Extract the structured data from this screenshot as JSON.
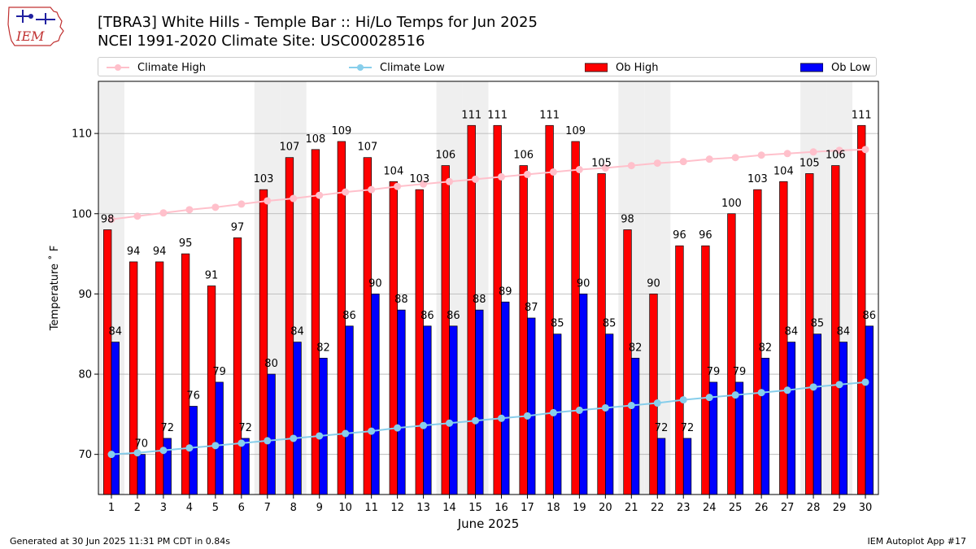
{
  "header": {
    "title_line1": "[TBRA3] White Hills - Temple Bar :: Hi/Lo Temps for Jun 2025",
    "title_line2": "NCEI 1991-2020 Climate Site: USC00028516",
    "logo_text": "IEM"
  },
  "legend": [
    {
      "label": "Climate High",
      "kind": "line",
      "color": "#ffc0cb"
    },
    {
      "label": "Climate Low",
      "kind": "line",
      "color": "#87ceeb"
    },
    {
      "label": "Ob High",
      "kind": "bar",
      "color": "#ff0000"
    },
    {
      "label": "Ob Low",
      "kind": "bar",
      "color": "#0000ff"
    }
  ],
  "footer": {
    "left": "Generated at 30 Jun 2025 11:31 PM CDT in 0.84s",
    "right": "IEM Autoplot App #17"
  },
  "colors": {
    "ob_high": "#ff0000",
    "ob_low": "#0000ff",
    "climate_high": "#ffc0cb",
    "climate_low": "#87ceeb",
    "weekend_shade": "#efefef",
    "grid": "#b0b0b0"
  },
  "chart_data": {
    "type": "bar",
    "title": "[TBRA3] White Hills - Temple Bar :: Hi/Lo Temps for Jun 2025",
    "subtitle": "NCEI 1991-2020 Climate Site: USC00028516",
    "xlabel": "June 2025",
    "ylabel": "Temperature ˚ F",
    "ylim": [
      65,
      116.5
    ],
    "yticks": [
      70,
      80,
      90,
      100,
      110
    ],
    "grid": true,
    "legend_position": "top",
    "categories": [
      "1",
      "2",
      "3",
      "4",
      "5",
      "6",
      "7",
      "8",
      "9",
      "10",
      "11",
      "12",
      "13",
      "14",
      "15",
      "16",
      "17",
      "18",
      "19",
      "20",
      "21",
      "22",
      "23",
      "24",
      "25",
      "26",
      "27",
      "28",
      "29",
      "30"
    ],
    "shaded_days": [
      1,
      7,
      8,
      14,
      15,
      21,
      22,
      28,
      29
    ],
    "series": [
      {
        "name": "Ob High",
        "kind": "bar",
        "values": [
          98,
          94,
          94,
          95,
          91,
          97,
          103,
          107,
          108,
          109,
          107,
          104,
          103,
          106,
          111,
          111,
          106,
          111,
          109,
          105,
          98,
          90,
          96,
          96,
          100,
          103,
          104,
          105,
          106,
          111
        ],
        "labels": [
          98,
          94,
          94,
          95,
          91,
          97,
          103,
          107,
          108,
          109,
          107,
          104,
          103,
          106,
          111,
          111,
          106,
          111,
          109,
          105,
          98,
          90,
          96,
          96,
          100,
          103,
          104,
          105,
          106,
          111
        ]
      },
      {
        "name": "Ob Low",
        "kind": "bar",
        "values": [
          84,
          70,
          72,
          76,
          79,
          72,
          80,
          84,
          82,
          86,
          90,
          88,
          86,
          86,
          88,
          89,
          87,
          85,
          90,
          85,
          82,
          72,
          72,
          79,
          79,
          82,
          84,
          85,
          84,
          86
        ],
        "labels": [
          84,
          70,
          72,
          76,
          79,
          72,
          80,
          84,
          82,
          86,
          90,
          88,
          86,
          86,
          88,
          89,
          87,
          85,
          90,
          85,
          82,
          72,
          72,
          79,
          79,
          82,
          84,
          85,
          84,
          86
        ]
      },
      {
        "name": "Climate High",
        "kind": "line",
        "values": [
          99.3,
          99.7,
          100.1,
          100.5,
          100.8,
          101.2,
          101.6,
          101.9,
          102.3,
          102.7,
          103.0,
          103.4,
          103.7,
          104.0,
          104.3,
          104.6,
          104.9,
          105.2,
          105.5,
          105.7,
          106.0,
          106.3,
          106.5,
          106.8,
          107.0,
          107.3,
          107.5,
          107.7,
          107.9,
          108.0
        ]
      },
      {
        "name": "Climate Low",
        "kind": "line",
        "values": [
          70.0,
          70.2,
          70.5,
          70.8,
          71.1,
          71.4,
          71.7,
          72.0,
          72.3,
          72.6,
          72.9,
          73.3,
          73.6,
          73.9,
          74.2,
          74.5,
          74.8,
          75.2,
          75.5,
          75.8,
          76.1,
          76.4,
          76.8,
          77.1,
          77.4,
          77.7,
          78.0,
          78.4,
          78.7,
          79.0
        ]
      }
    ]
  }
}
